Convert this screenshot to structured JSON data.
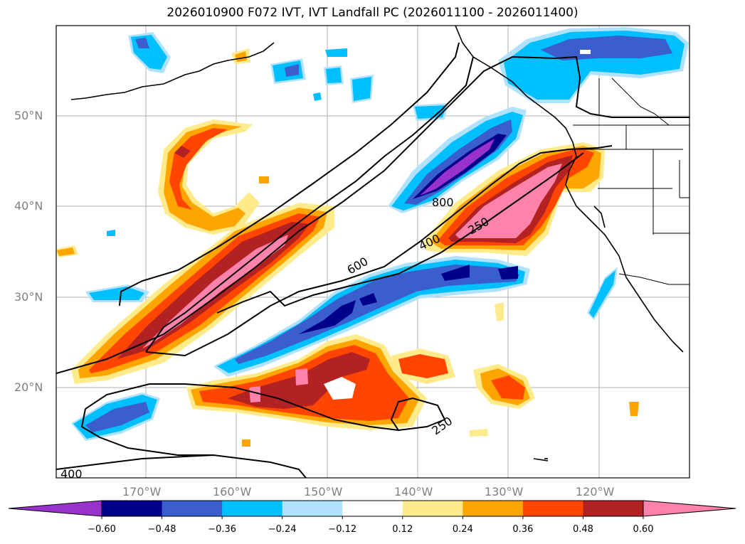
{
  "title": "2026010900 F072 IVT, IVT Landfall PC (2026011100 - 2026011400)",
  "map": {
    "lat_labels": [
      "50°N",
      "40°N",
      "30°N",
      "20°N"
    ],
    "lon_labels": [
      "170°W",
      "160°W",
      "150°W",
      "140°W",
      "130°W",
      "120°W"
    ],
    "contour_labels": [
      "800",
      "250",
      "400",
      "600",
      "250",
      "400"
    ]
  },
  "colorbar": {
    "ticks": [
      "−0.60",
      "−0.48",
      "−0.36",
      "−0.24",
      "−0.12",
      "0.12",
      "0.24",
      "0.36",
      "0.48",
      "0.60"
    ],
    "colors": [
      "#9932cc",
      "#00008b",
      "#3a5fcd",
      "#00bfff",
      "#b0e2ff",
      "#ffffff",
      "#ffeb8c",
      "#ffa500",
      "#ff4500",
      "#b22222",
      "#ff82ab"
    ]
  }
}
